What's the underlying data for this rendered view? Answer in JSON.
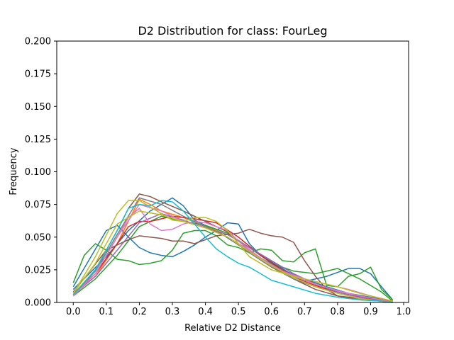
{
  "chart_data": {
    "type": "line",
    "title": "D2 Distribution for class: FourLeg",
    "xlabel": "Relative D2 Distance",
    "ylabel": "Frequency",
    "xlim": [
      -0.05,
      1.015
    ],
    "ylim": [
      0.0,
      0.2
    ],
    "xticks": [
      "0.0",
      "0.1",
      "0.2",
      "0.3",
      "0.4",
      "0.5",
      "0.6",
      "0.7",
      "0.8",
      "0.9",
      "1.0"
    ],
    "yticks": [
      "0.000",
      "0.025",
      "0.050",
      "0.075",
      "0.100",
      "0.125",
      "0.150",
      "0.175",
      "0.200"
    ],
    "grid": false,
    "legend": "none",
    "series": [
      {
        "color": "#1f77b4",
        "x": [
          0.0,
          0.1,
          0.133,
          0.167,
          0.2,
          0.233,
          0.267,
          0.3,
          0.333,
          0.367,
          0.4,
          0.433,
          0.467,
          0.5,
          0.533,
          0.567,
          0.6,
          0.633,
          0.667,
          0.7,
          0.733,
          0.767,
          0.8,
          0.833,
          0.867,
          0.9,
          0.933,
          0.967
        ],
        "values": [
          0.012,
          0.055,
          0.059,
          0.05,
          0.042,
          0.038,
          0.036,
          0.035,
          0.039,
          0.044,
          0.05,
          0.055,
          0.061,
          0.06,
          0.045,
          0.036,
          0.031,
          0.026,
          0.02,
          0.016,
          0.018,
          0.02,
          0.023,
          0.026,
          0.026,
          0.022,
          0.012,
          0.002
        ]
      },
      {
        "color": "#1f77b4",
        "x": [
          0.0,
          0.1,
          0.167,
          0.233,
          0.3,
          0.333,
          0.367,
          0.433,
          0.5,
          0.567,
          0.633,
          0.7,
          0.767,
          0.833,
          0.9,
          0.967
        ],
        "values": [
          0.01,
          0.035,
          0.055,
          0.07,
          0.08,
          0.074,
          0.063,
          0.055,
          0.044,
          0.034,
          0.025,
          0.018,
          0.012,
          0.007,
          0.004,
          0.001
        ]
      },
      {
        "color": "#ff7f0e",
        "x": [
          0.0,
          0.067,
          0.133,
          0.2,
          0.233,
          0.267,
          0.333,
          0.4,
          0.467,
          0.533,
          0.6,
          0.667,
          0.733,
          0.8,
          0.867,
          0.933,
          0.967
        ],
        "values": [
          0.006,
          0.02,
          0.045,
          0.079,
          0.075,
          0.07,
          0.065,
          0.058,
          0.052,
          0.042,
          0.032,
          0.022,
          0.014,
          0.008,
          0.004,
          0.001,
          0.0
        ]
      },
      {
        "color": "#2ca02c",
        "x": [
          0.0,
          0.033,
          0.067,
          0.1,
          0.133,
          0.167,
          0.2,
          0.233,
          0.267,
          0.3,
          0.333,
          0.367,
          0.4,
          0.433,
          0.467,
          0.5,
          0.533,
          0.567,
          0.6,
          0.633,
          0.667,
          0.7,
          0.733,
          0.767,
          0.8,
          0.833,
          0.867,
          0.9,
          0.933,
          0.967
        ],
        "values": [
          0.015,
          0.036,
          0.045,
          0.04,
          0.033,
          0.032,
          0.029,
          0.03,
          0.032,
          0.04,
          0.053,
          0.055,
          0.055,
          0.051,
          0.044,
          0.042,
          0.038,
          0.041,
          0.04,
          0.032,
          0.031,
          0.038,
          0.041,
          0.013,
          0.012,
          0.02,
          0.022,
          0.027,
          0.01,
          0.002
        ]
      },
      {
        "color": "#2ca02c",
        "x": [
          0.0,
          0.067,
          0.133,
          0.2,
          0.267,
          0.333,
          0.4,
          0.467,
          0.533,
          0.6,
          0.667,
          0.733,
          0.767,
          0.8,
          0.867,
          0.933,
          0.967
        ],
        "values": [
          0.005,
          0.018,
          0.036,
          0.058,
          0.066,
          0.062,
          0.059,
          0.053,
          0.042,
          0.03,
          0.024,
          0.022,
          0.024,
          0.026,
          0.018,
          0.008,
          0.001
        ]
      },
      {
        "color": "#d62728",
        "x": [
          0.0,
          0.067,
          0.133,
          0.167,
          0.2,
          0.233,
          0.3,
          0.367,
          0.433,
          0.5,
          0.567,
          0.633,
          0.7,
          0.767,
          0.833,
          0.9,
          0.967
        ],
        "values": [
          0.007,
          0.022,
          0.045,
          0.058,
          0.062,
          0.062,
          0.066,
          0.064,
          0.061,
          0.05,
          0.036,
          0.025,
          0.016,
          0.01,
          0.006,
          0.003,
          0.001
        ]
      },
      {
        "color": "#9467bd",
        "x": [
          0.0,
          0.067,
          0.133,
          0.2,
          0.267,
          0.333,
          0.4,
          0.467,
          0.533,
          0.6,
          0.667,
          0.733,
          0.8,
          0.867,
          0.933,
          0.967
        ],
        "values": [
          0.006,
          0.02,
          0.04,
          0.061,
          0.068,
          0.063,
          0.057,
          0.052,
          0.042,
          0.032,
          0.022,
          0.014,
          0.008,
          0.004,
          0.001,
          0.0
        ]
      },
      {
        "color": "#8c564b",
        "x": [
          0.0,
          0.1,
          0.133,
          0.167,
          0.2,
          0.233,
          0.267,
          0.3,
          0.333,
          0.367,
          0.4,
          0.433,
          0.467,
          0.5,
          0.533,
          0.567,
          0.6,
          0.633,
          0.667,
          0.7,
          0.733,
          0.767,
          0.8,
          0.867,
          0.933,
          0.967
        ],
        "values": [
          0.008,
          0.04,
          0.044,
          0.048,
          0.051,
          0.05,
          0.049,
          0.047,
          0.047,
          0.045,
          0.048,
          0.051,
          0.052,
          0.053,
          0.056,
          0.053,
          0.051,
          0.05,
          0.046,
          0.032,
          0.02,
          0.01,
          0.005,
          0.003,
          0.001,
          0.0
        ]
      },
      {
        "color": "#8c564b",
        "x": [
          0.0,
          0.067,
          0.133,
          0.167,
          0.2,
          0.233,
          0.267,
          0.333,
          0.4,
          0.467,
          0.533,
          0.6,
          0.667,
          0.733,
          0.8,
          0.867,
          0.933,
          0.967
        ],
        "values": [
          0.006,
          0.025,
          0.055,
          0.072,
          0.083,
          0.081,
          0.077,
          0.07,
          0.062,
          0.054,
          0.04,
          0.028,
          0.018,
          0.01,
          0.005,
          0.002,
          0.001,
          0.0
        ]
      },
      {
        "color": "#e377c2",
        "x": [
          0.0,
          0.067,
          0.133,
          0.167,
          0.2,
          0.233,
          0.267,
          0.3,
          0.333,
          0.367,
          0.4,
          0.433,
          0.467,
          0.5,
          0.567,
          0.633,
          0.7,
          0.767,
          0.833,
          0.9,
          0.967
        ],
        "values": [
          0.006,
          0.022,
          0.05,
          0.065,
          0.072,
          0.06,
          0.055,
          0.056,
          0.06,
          0.062,
          0.061,
          0.058,
          0.055,
          0.047,
          0.034,
          0.024,
          0.018,
          0.014,
          0.01,
          0.005,
          0.001
        ]
      },
      {
        "color": "#e377c2",
        "x": [
          0.0,
          0.067,
          0.133,
          0.2,
          0.267,
          0.333,
          0.4,
          0.467,
          0.533,
          0.6,
          0.667,
          0.733,
          0.8,
          0.867,
          0.933,
          0.967
        ],
        "values": [
          0.005,
          0.022,
          0.05,
          0.075,
          0.07,
          0.062,
          0.058,
          0.05,
          0.04,
          0.028,
          0.02,
          0.014,
          0.009,
          0.005,
          0.002,
          0.0
        ]
      },
      {
        "color": "#7f7f7f",
        "x": [
          0.0,
          0.067,
          0.133,
          0.2,
          0.267,
          0.333,
          0.4,
          0.467,
          0.533,
          0.6,
          0.667,
          0.733,
          0.8,
          0.867,
          0.933,
          0.967
        ],
        "values": [
          0.006,
          0.024,
          0.052,
          0.08,
          0.075,
          0.066,
          0.058,
          0.05,
          0.038,
          0.027,
          0.018,
          0.012,
          0.007,
          0.003,
          0.001,
          0.0
        ]
      },
      {
        "color": "#bcbd22",
        "x": [
          0.0,
          0.067,
          0.133,
          0.167,
          0.2,
          0.233,
          0.267,
          0.3,
          0.333,
          0.367,
          0.4,
          0.433,
          0.467,
          0.5,
          0.533,
          0.6,
          0.667,
          0.733,
          0.8,
          0.867,
          0.933,
          0.967
        ],
        "values": [
          0.007,
          0.035,
          0.068,
          0.078,
          0.078,
          0.073,
          0.068,
          0.063,
          0.062,
          0.065,
          0.065,
          0.062,
          0.055,
          0.045,
          0.035,
          0.025,
          0.02,
          0.016,
          0.012,
          0.007,
          0.003,
          0.001
        ]
      },
      {
        "color": "#bcbd22",
        "x": [
          0.0,
          0.067,
          0.133,
          0.2,
          0.267,
          0.333,
          0.4,
          0.467,
          0.533,
          0.6,
          0.667,
          0.733,
          0.8,
          0.867,
          0.933,
          0.967
        ],
        "values": [
          0.007,
          0.03,
          0.06,
          0.07,
          0.067,
          0.062,
          0.057,
          0.05,
          0.039,
          0.028,
          0.019,
          0.012,
          0.007,
          0.003,
          0.001,
          0.0
        ]
      },
      {
        "color": "#17becf",
        "x": [
          0.0,
          0.067,
          0.133,
          0.167,
          0.2,
          0.233,
          0.267,
          0.3,
          0.333,
          0.367,
          0.4,
          0.433,
          0.467,
          0.5,
          0.533,
          0.567,
          0.6,
          0.667,
          0.733,
          0.8,
          0.867,
          0.933,
          0.967
        ],
        "values": [
          0.006,
          0.025,
          0.055,
          0.072,
          0.075,
          0.074,
          0.078,
          0.077,
          0.07,
          0.06,
          0.05,
          0.041,
          0.035,
          0.03,
          0.027,
          0.022,
          0.017,
          0.012,
          0.007,
          0.004,
          0.002,
          0.001,
          0.0
        ]
      }
    ]
  }
}
